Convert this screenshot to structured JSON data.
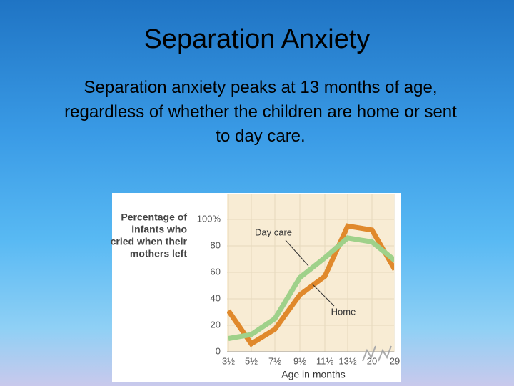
{
  "slide": {
    "title": "Separation Anxiety",
    "text": "Separation anxiety peaks at 13 months of age, regardless of whether the children are home or sent to day care."
  },
  "chart_data": {
    "type": "line",
    "ylabel": [
      "Percentage of",
      "infants who",
      "cried when their",
      "mothers left"
    ],
    "xlabel": "Age in months",
    "categories": [
      "3½",
      "5½",
      "7½",
      "9½",
      "11½",
      "13½",
      "20",
      "29"
    ],
    "series": [
      {
        "name": "Day care",
        "color": "#9fd18a",
        "values": [
          10,
          13,
          25,
          56,
          71,
          86,
          83,
          69
        ]
      },
      {
        "name": "Home",
        "color": "#e0892c",
        "values": [
          31,
          6,
          17,
          43,
          57,
          95,
          92,
          62
        ]
      }
    ],
    "ylim": [
      0,
      120
    ],
    "yticks": [
      0,
      20,
      40,
      60,
      80,
      {
        "value": 100,
        "label": "100%"
      }
    ],
    "grid": true
  }
}
